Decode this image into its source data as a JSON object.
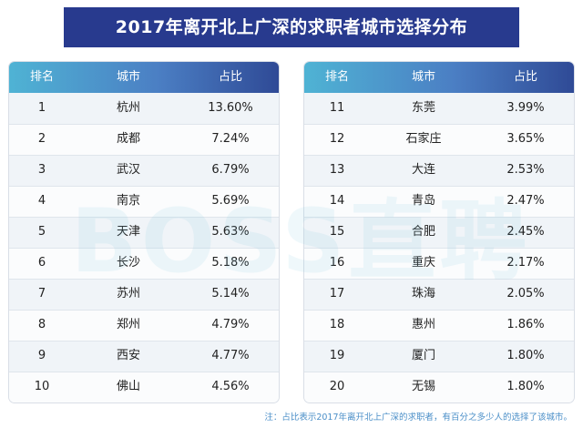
{
  "title": "2017年离开北上广深的求职者城市选择分布",
  "headers": {
    "rank": "排名",
    "city": "城市",
    "share": "占比"
  },
  "left_table": [
    {
      "rank": "1",
      "city": "杭州",
      "share": "13.60%"
    },
    {
      "rank": "2",
      "city": "成都",
      "share": "7.24%"
    },
    {
      "rank": "3",
      "city": "武汉",
      "share": "6.79%"
    },
    {
      "rank": "4",
      "city": "南京",
      "share": "5.69%"
    },
    {
      "rank": "5",
      "city": "天津",
      "share": "5.63%"
    },
    {
      "rank": "6",
      "city": "长沙",
      "share": "5.18%"
    },
    {
      "rank": "7",
      "city": "苏州",
      "share": "5.14%"
    },
    {
      "rank": "8",
      "city": "郑州",
      "share": "4.79%"
    },
    {
      "rank": "9",
      "city": "西安",
      "share": "4.77%"
    },
    {
      "rank": "10",
      "city": "佛山",
      "share": "4.56%"
    }
  ],
  "right_table": [
    {
      "rank": "11",
      "city": "东莞",
      "share": "3.99%"
    },
    {
      "rank": "12",
      "city": "石家庄",
      "share": "3.65%"
    },
    {
      "rank": "13",
      "city": "大连",
      "share": "2.53%"
    },
    {
      "rank": "14",
      "city": "青岛",
      "share": "2.47%"
    },
    {
      "rank": "15",
      "city": "合肥",
      "share": "2.45%"
    },
    {
      "rank": "16",
      "city": "重庆",
      "share": "2.17%"
    },
    {
      "rank": "17",
      "city": "珠海",
      "share": "2.05%"
    },
    {
      "rank": "18",
      "city": "惠州",
      "share": "1.86%"
    },
    {
      "rank": "19",
      "city": "厦门",
      "share": "1.80%"
    },
    {
      "rank": "20",
      "city": "无锡",
      "share": "1.80%"
    }
  ],
  "watermark": "BOSS直聘",
  "footnote": "注：占比表示2017年离开北上广深的求职者，有百分之多少人的选择了该城市。",
  "colors": {
    "title_bg": "#283a8e",
    "header_gradient_start": "#4fb3d4",
    "header_gradient_end": "#2f4a96",
    "footnote": "#4b8fc8"
  }
}
